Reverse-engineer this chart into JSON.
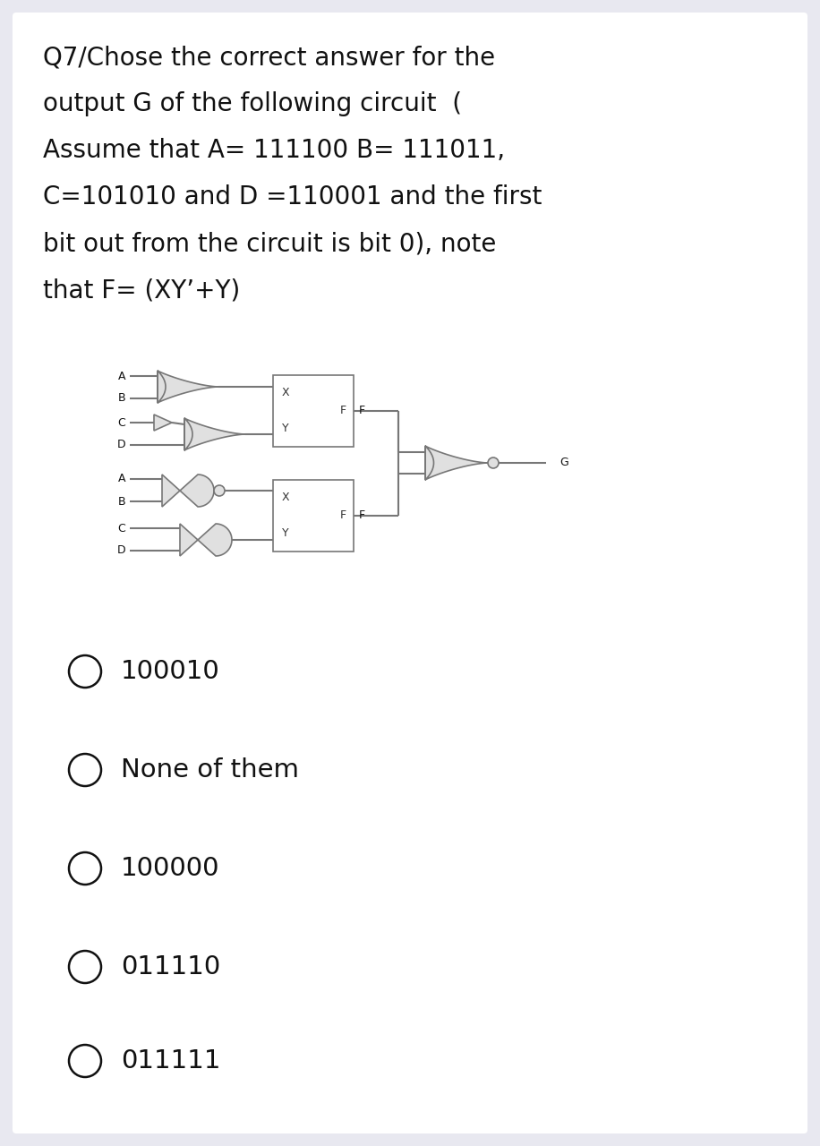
{
  "bg_color": "#e8e8f0",
  "panel_color": "#ffffff",
  "line_color": "#777777",
  "gate_edge": "#777777",
  "gate_fill": "#e0e0e0",
  "text_color": "#111111",
  "title_lines": [
    "Q7/Chose the correct answer for the",
    "output G of the following circuit  (",
    "Assume that A= 111100 B= 111011,",
    "C=101010 and D =110001 and the first",
    "bit out from the circuit is bit 0), note",
    "that F= (XY’+Y)"
  ],
  "title_fontsize": 20,
  "options": [
    "100010",
    "None of them",
    "100000",
    "011110",
    "011111"
  ],
  "option_fontsize": 21,
  "circle_r": 0.16
}
